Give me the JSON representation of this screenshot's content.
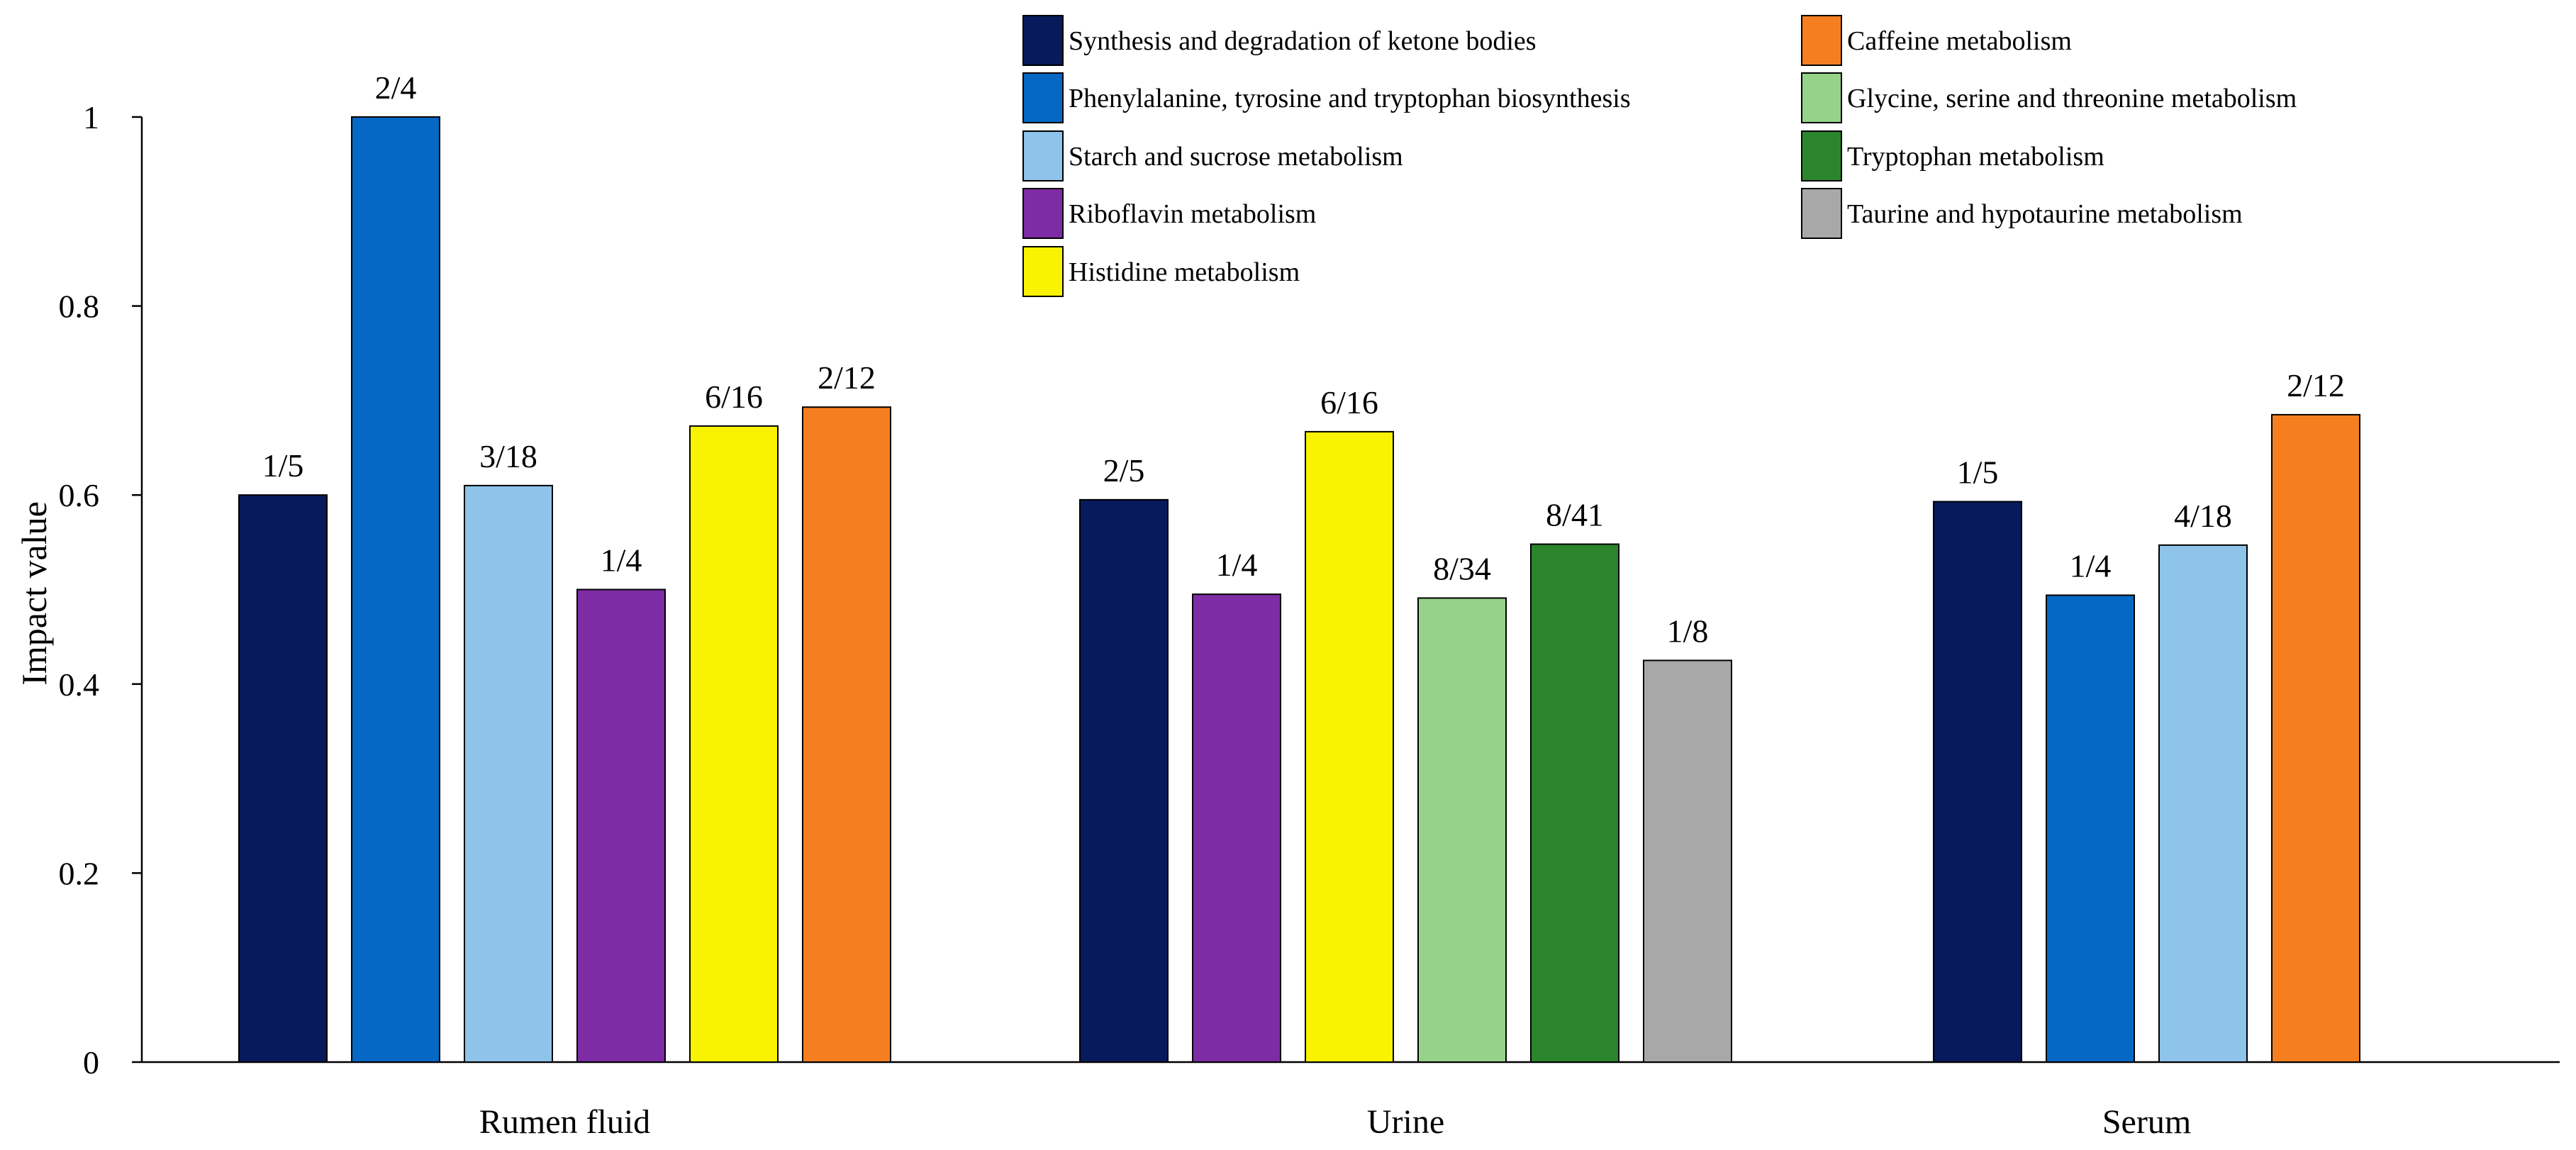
{
  "chart_data": {
    "type": "bar",
    "title": "",
    "xlabel": "",
    "ylabel": "Impact value",
    "ylim": [
      0,
      1
    ],
    "yticks": [
      0,
      0.2,
      0.4,
      0.6,
      0.8,
      1
    ],
    "ytick_labels": [
      "0",
      "0.2",
      "0.4",
      "0.6",
      "0.8",
      "1"
    ],
    "grid": false,
    "legend_position": "top-right",
    "pathways": [
      {
        "name": "Synthesis and degradation of ketone bodies",
        "color": "#061a5c"
      },
      {
        "name": "Caffeine metabolism",
        "color": "#f57f20"
      },
      {
        "name": "Phenylalanine, tyrosine and tryptophan biosynthesis",
        "color": "#0468c4"
      },
      {
        "name": "Glycine, serine and threonine metabolism",
        "color": "#95d38a"
      },
      {
        "name": "Starch and sucrose metabolism",
        "color": "#8ec3ea"
      },
      {
        "name": "Tryptophan metabolism",
        "color": "#2a852c"
      },
      {
        "name": "Riboflavin metabolism",
        "color": "#7e2ca5"
      },
      {
        "name": "Taurine and hypotaurine metabolism",
        "color": "#a8a8a8"
      },
      {
        "name": "Histidine metabolism",
        "color": "#f9f200"
      }
    ],
    "groups": [
      {
        "name": "Rumen fluid",
        "bars": [
          {
            "pathway": 0,
            "value": 0.6,
            "label": "1/5"
          },
          {
            "pathway": 2,
            "value": 1.0,
            "label": "2/4"
          },
          {
            "pathway": 4,
            "value": 0.61,
            "label": "3/18"
          },
          {
            "pathway": 6,
            "value": 0.5,
            "label": "1/4"
          },
          {
            "pathway": 8,
            "value": 0.673,
            "label": "6/16"
          },
          {
            "pathway": 1,
            "value": 0.693,
            "label": "2/12"
          }
        ]
      },
      {
        "name": "Urine",
        "bars": [
          {
            "pathway": 0,
            "value": 0.595,
            "label": "2/5"
          },
          {
            "pathway": 6,
            "value": 0.495,
            "label": "1/4"
          },
          {
            "pathway": 8,
            "value": 0.667,
            "label": "6/16"
          },
          {
            "pathway": 3,
            "value": 0.491,
            "label": "8/34"
          },
          {
            "pathway": 5,
            "value": 0.548,
            "label": "8/41"
          },
          {
            "pathway": 7,
            "value": 0.425,
            "label": "1/8"
          }
        ]
      },
      {
        "name": "Serum",
        "bars": [
          {
            "pathway": 0,
            "value": 0.593,
            "label": "1/5"
          },
          {
            "pathway": 2,
            "value": 0.494,
            "label": "1/4"
          },
          {
            "pathway": 4,
            "value": 0.547,
            "label": "4/18"
          },
          {
            "pathway": 1,
            "value": 0.685,
            "label": "2/12"
          }
        ]
      }
    ]
  }
}
